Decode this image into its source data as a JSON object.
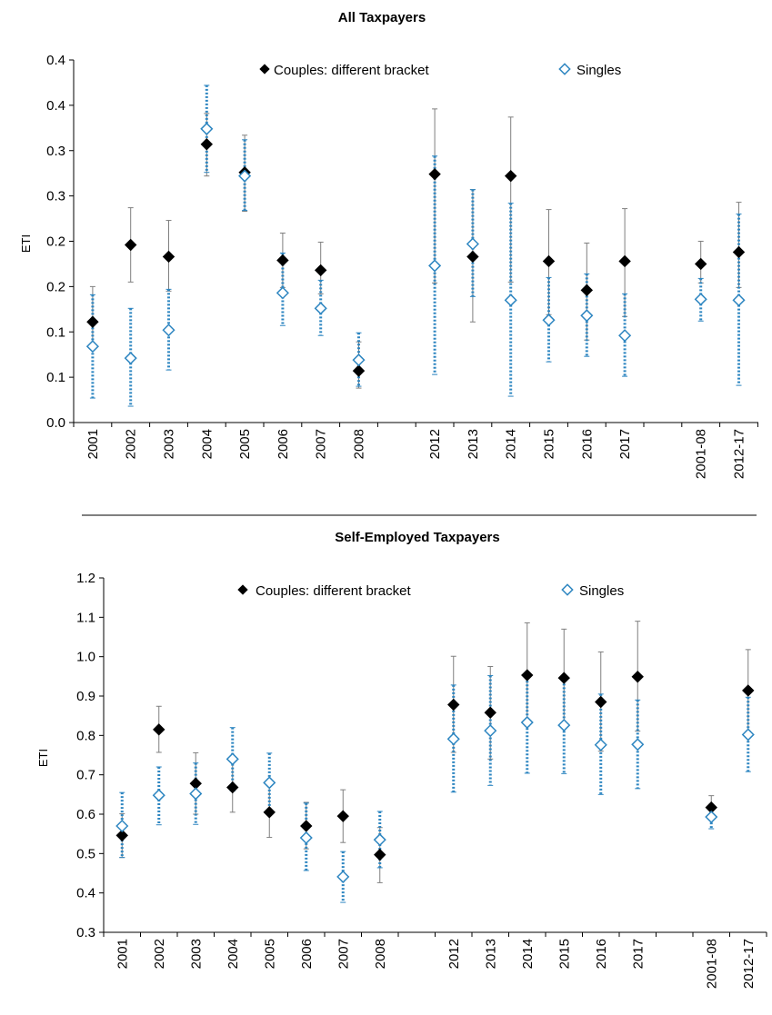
{
  "chart_data": [
    {
      "type": "scatter",
      "title": "All Taxpayers",
      "ylabel": "ETI",
      "xlabel": "",
      "ylim": [
        0.0,
        0.4
      ],
      "y_ticks": [
        0.0,
        0.05,
        0.1,
        0.15,
        0.2,
        0.25,
        0.3,
        0.35,
        0.4
      ],
      "y_tick_labels": [
        "0.0",
        "0.1",
        "0.1",
        "0.2",
        "0.2",
        "0.3",
        "0.3",
        "0.4",
        "0.4"
      ],
      "categories": [
        "2001",
        "2002",
        "2003",
        "2004",
        "2005",
        "2006",
        "2007",
        "2008",
        "",
        "2012",
        "2013",
        "2014",
        "2015",
        "2016",
        "2017",
        "",
        "2001-08",
        "2012-17"
      ],
      "grid": false,
      "legend_position": "top",
      "series": [
        {
          "name": "Couples: different bracket",
          "marker": "filled-diamond",
          "color": "#000000",
          "error_bar_style": "solid",
          "values": [
            0.111,
            0.196,
            0.183,
            0.307,
            0.276,
            0.179,
            0.168,
            0.057,
            null,
            0.274,
            0.183,
            0.272,
            0.178,
            0.146,
            0.178,
            null,
            0.175,
            0.188
          ],
          "lower": [
            0.082,
            0.155,
            0.145,
            0.272,
            0.233,
            0.149,
            0.142,
            0.038,
            null,
            0.154,
            0.111,
            0.155,
            0.119,
            0.091,
            0.117,
            null,
            0.154,
            0.149
          ],
          "upper": [
            0.15,
            0.237,
            0.223,
            0.341,
            0.317,
            0.209,
            0.199,
            0.089,
            null,
            0.346,
            0.257,
            0.337,
            0.235,
            0.198,
            0.236,
            null,
            0.2,
            0.243
          ]
        },
        {
          "name": "Singles",
          "marker": "hollow-diamond",
          "color": "#2e86c1",
          "error_bar_style": "dotted",
          "values": [
            0.084,
            0.071,
            0.102,
            0.324,
            0.272,
            0.143,
            0.126,
            0.069,
            null,
            0.173,
            0.197,
            0.135,
            0.113,
            0.118,
            0.096,
            null,
            0.136,
            0.135
          ],
          "lower": [
            0.027,
            0.018,
            0.058,
            0.276,
            0.234,
            0.107,
            0.096,
            0.04,
            null,
            0.053,
            0.139,
            0.029,
            0.067,
            0.073,
            0.051,
            null,
            0.112,
            0.041
          ],
          "upper": [
            0.141,
            0.126,
            0.147,
            0.372,
            0.312,
            0.187,
            0.157,
            0.099,
            null,
            0.294,
            0.257,
            0.242,
            0.16,
            0.164,
            0.142,
            null,
            0.159,
            0.23
          ]
        }
      ]
    },
    {
      "type": "scatter",
      "title": "Self-Employed Taxpayers",
      "ylabel": "ETI",
      "xlabel": "",
      "ylim": [
        0.3,
        1.2
      ],
      "y_ticks": [
        0.3,
        0.4,
        0.5,
        0.6,
        0.7,
        0.8,
        0.9,
        1.0,
        1.1,
        1.2
      ],
      "y_tick_labels": [
        "0.3",
        "0.4",
        "0.5",
        "0.6",
        "0.7",
        "0.8",
        "0.9",
        "1.0",
        "1.1",
        "1.2"
      ],
      "categories": [
        "2001",
        "2002",
        "2003",
        "2004",
        "2005",
        "2006",
        "2007",
        "2008",
        "",
        "2012",
        "2013",
        "2014",
        "2015",
        "2016",
        "2017",
        "",
        "2001-08",
        "2012-17"
      ],
      "grid": false,
      "legend_position": "top",
      "series": [
        {
          "name": "Couples: different bracket",
          "marker": "filled-diamond",
          "color": "#000000",
          "error_bar_style": "solid",
          "values": [
            0.546,
            0.815,
            0.678,
            0.668,
            0.605,
            0.57,
            0.595,
            0.497,
            null,
            0.878,
            0.858,
            0.953,
            0.946,
            0.885,
            0.949,
            null,
            0.617,
            0.914
          ],
          "lower": [
            0.49,
            0.757,
            0.6,
            0.605,
            0.541,
            0.512,
            0.528,
            0.426,
            null,
            0.757,
            0.74,
            0.824,
            0.823,
            0.76,
            0.811,
            null,
            0.59,
            0.811
          ],
          "upper": [
            0.601,
            0.874,
            0.756,
            0.733,
            0.672,
            0.63,
            0.662,
            0.566,
            null,
            1.001,
            0.975,
            1.086,
            1.07,
            1.012,
            1.09,
            null,
            0.647,
            1.018
          ]
        },
        {
          "name": "Singles",
          "marker": "hollow-diamond",
          "color": "#2e86c1",
          "error_bar_style": "dotted",
          "values": [
            0.57,
            0.648,
            0.652,
            0.74,
            0.68,
            0.54,
            0.441,
            0.535,
            null,
            0.791,
            0.812,
            0.833,
            0.826,
            0.776,
            0.777,
            null,
            0.593,
            0.802
          ],
          "lower": [
            0.49,
            0.573,
            0.574,
            0.659,
            0.605,
            0.457,
            0.376,
            0.464,
            null,
            0.656,
            0.673,
            0.704,
            0.703,
            0.65,
            0.665,
            null,
            0.563,
            0.708
          ],
          "upper": [
            0.655,
            0.72,
            0.73,
            0.82,
            0.755,
            0.628,
            0.505,
            0.607,
            null,
            0.928,
            0.952,
            0.957,
            0.95,
            0.905,
            0.89,
            null,
            0.625,
            0.897
          ]
        }
      ]
    }
  ]
}
